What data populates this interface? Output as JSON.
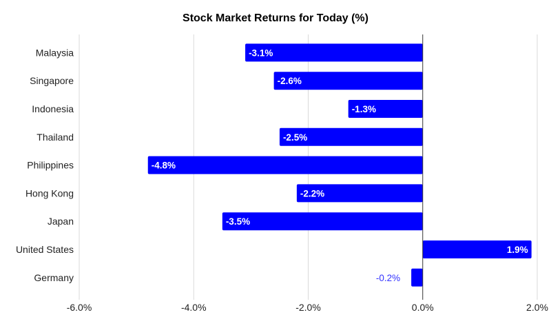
{
  "chart_data": {
    "type": "bar",
    "orientation": "horizontal",
    "title": "Stock Market Returns for Today (%)",
    "xlabel": "",
    "ylabel": "",
    "categories": [
      "Malaysia",
      "Singapore",
      "Indonesia",
      "Thailand",
      "Philippines",
      "Hong Kong",
      "Japan",
      "United States",
      "Germany"
    ],
    "values": [
      -3.1,
      -2.6,
      -1.3,
      -2.5,
      -4.8,
      -2.2,
      -3.5,
      1.9,
      -0.2
    ],
    "data_labels": [
      "-3.1%",
      "-2.6%",
      "-1.3%",
      "-2.5%",
      "-4.8%",
      "-2.2%",
      "-3.5%",
      "1.9%",
      "-0.2%"
    ],
    "xlim": [
      -6,
      2
    ],
    "x_ticks": [
      -6,
      -4,
      -2,
      0,
      2
    ],
    "x_tick_labels": [
      "-6.0%",
      "-4.0%",
      "-2.0%",
      "0.0%",
      "2.0%"
    ],
    "grid": "vertical",
    "legend": "none",
    "colors": {
      "bar": "#0000ff",
      "label_inside": "#ffffff",
      "label_outside": "#3333ff",
      "grid": "#d9d9d9",
      "axis": "#333333"
    }
  }
}
